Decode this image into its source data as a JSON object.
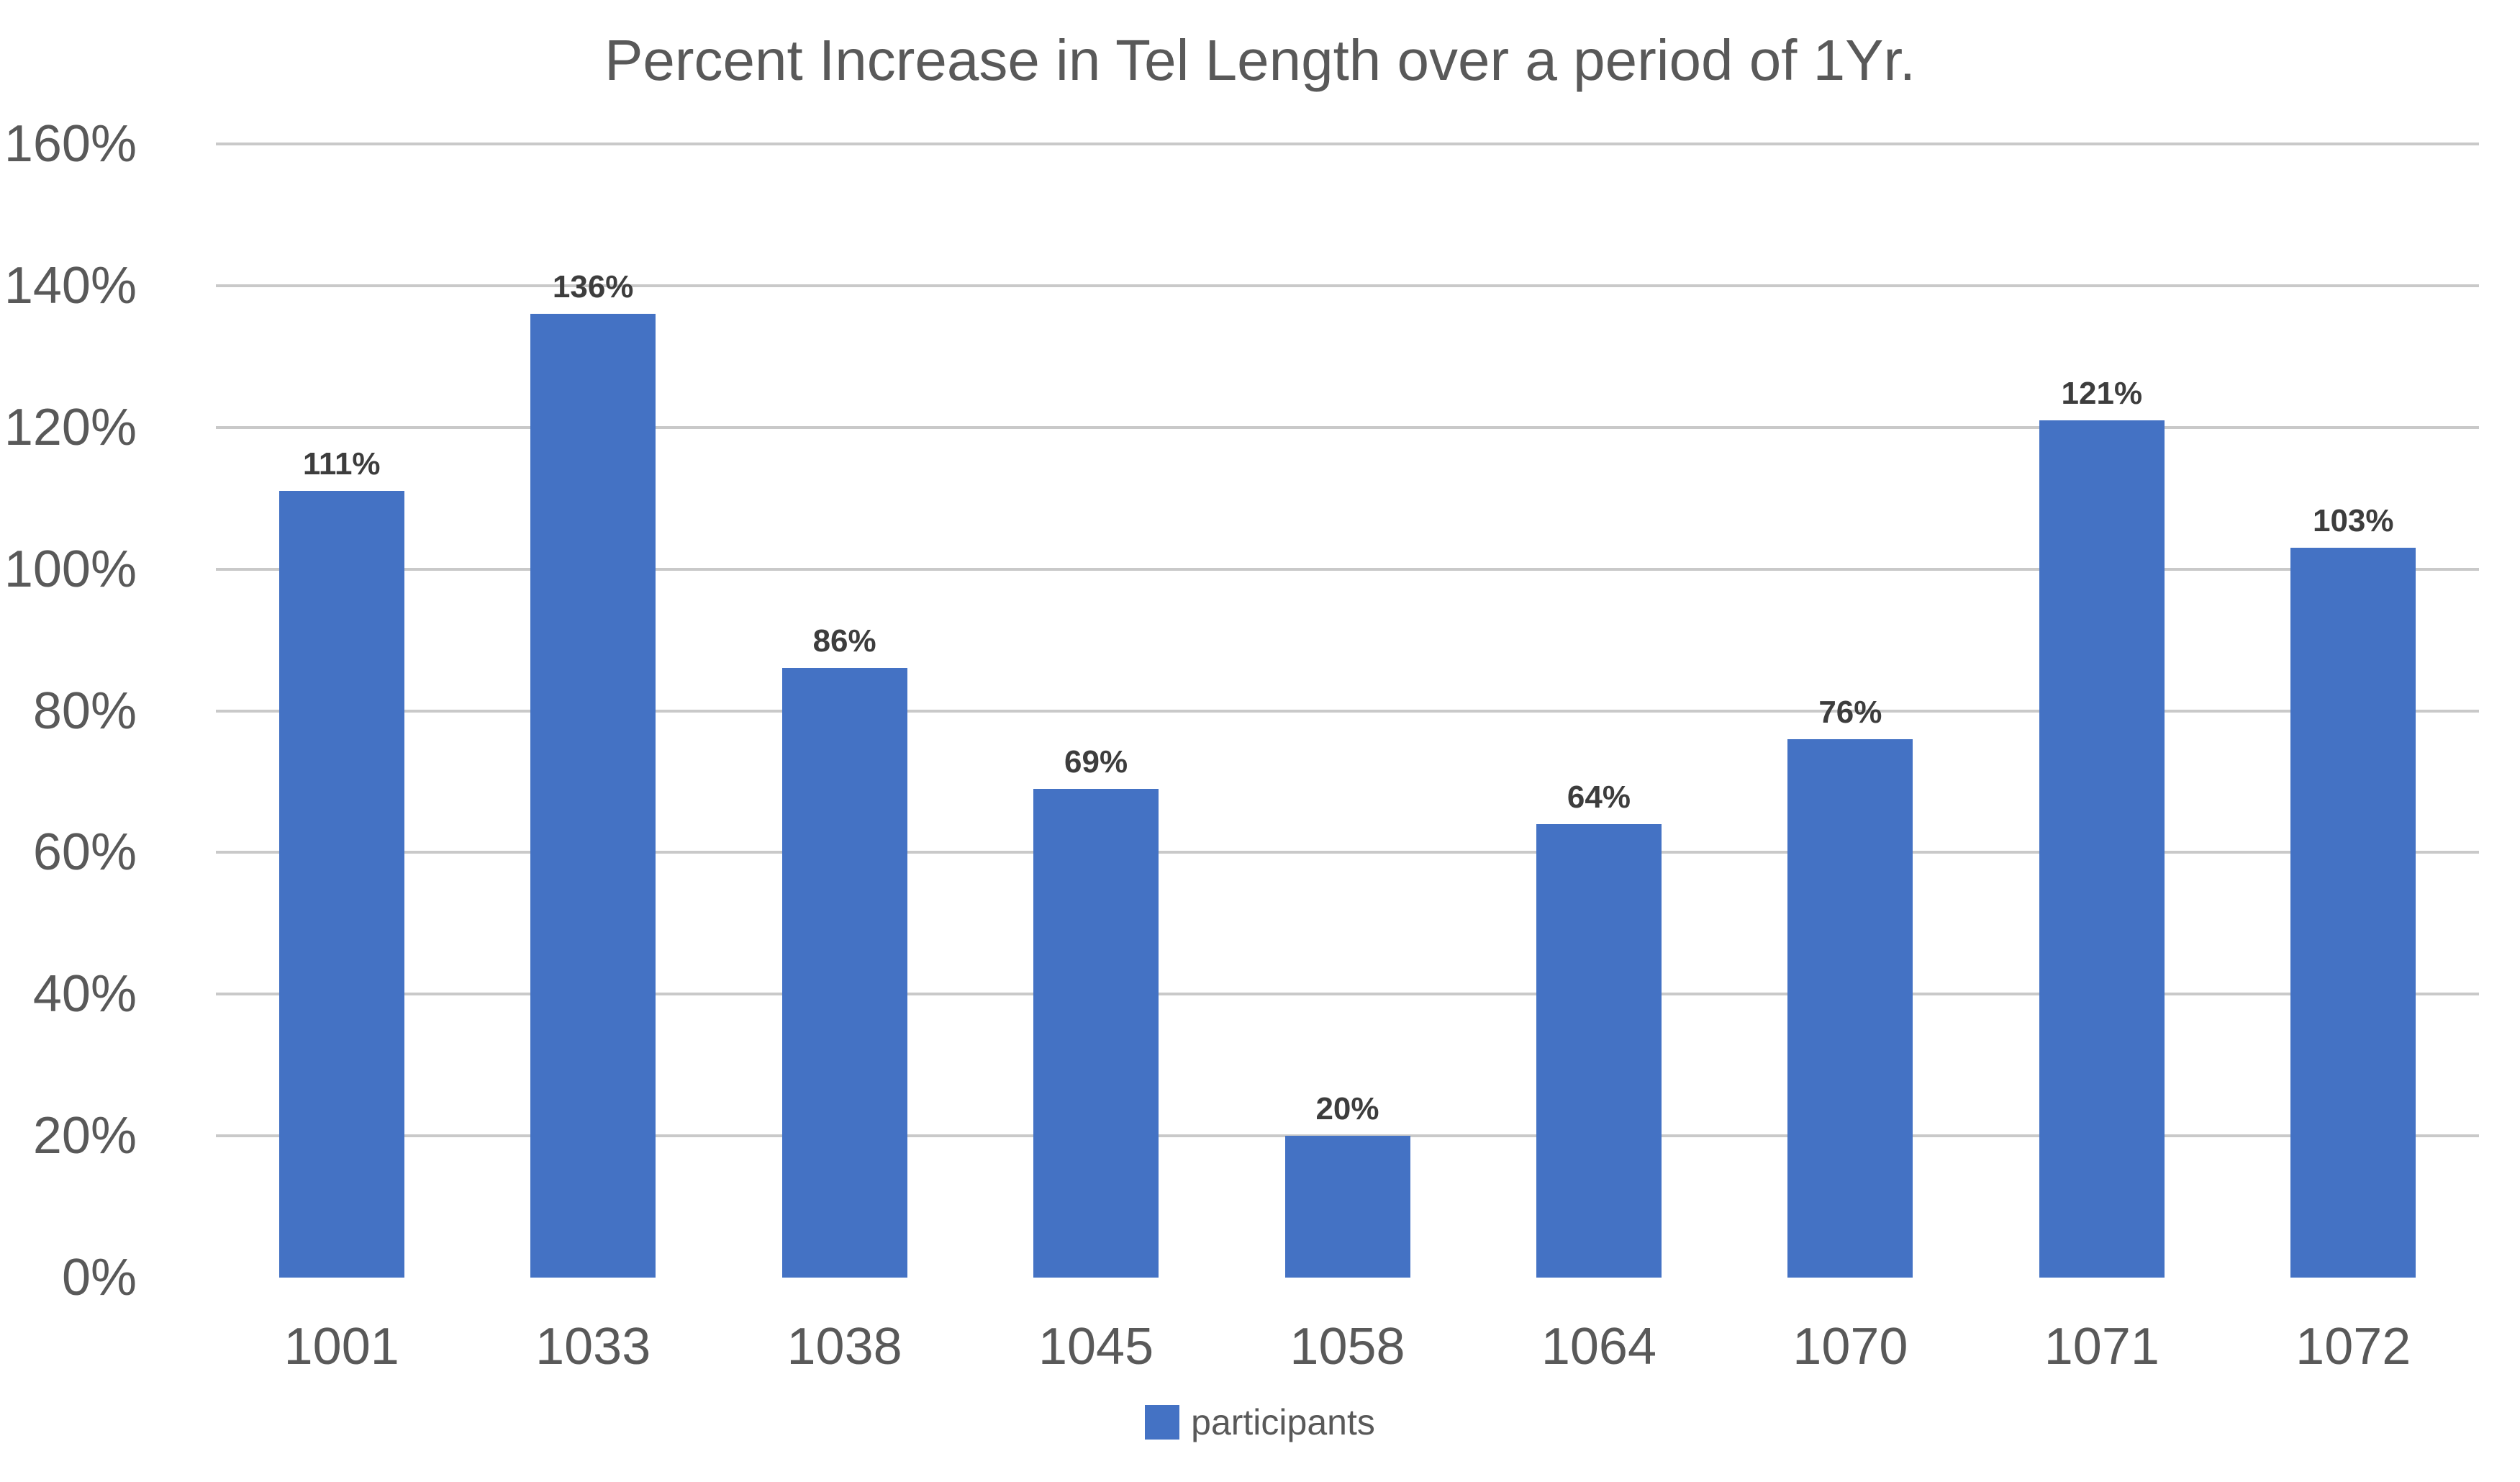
{
  "chart_data": {
    "type": "bar",
    "title": "Percent Increase in Tel Length over a period of 1Yr.",
    "categories": [
      "1001",
      "1033",
      "1038",
      "1045",
      "1058",
      "1064",
      "1070",
      "1071",
      "1072"
    ],
    "series": [
      {
        "name": "participants",
        "values": [
          111,
          136,
          86,
          69,
          20,
          64,
          76,
          121,
          103
        ]
      }
    ],
    "data_labels": [
      "111%",
      "136%",
      "86%",
      "69%",
      "20%",
      "64%",
      "76%",
      "121%",
      "103%"
    ],
    "xlabel": "",
    "ylabel": "",
    "ylim": [
      0,
      160
    ],
    "ytick_step": 20,
    "yticks": [
      "0%",
      "20%",
      "40%",
      "60%",
      "80%",
      "100%",
      "120%",
      "140%",
      "160%"
    ],
    "grid": true,
    "legend": {
      "label": "participants",
      "position": "bottom"
    },
    "colors": {
      "bar": "#4472C4",
      "gridline": "#c9c9c9",
      "axis_text": "#595959",
      "title_text": "#595959",
      "data_label_text": "#3d3d3d",
      "background": "#ffffff"
    }
  }
}
